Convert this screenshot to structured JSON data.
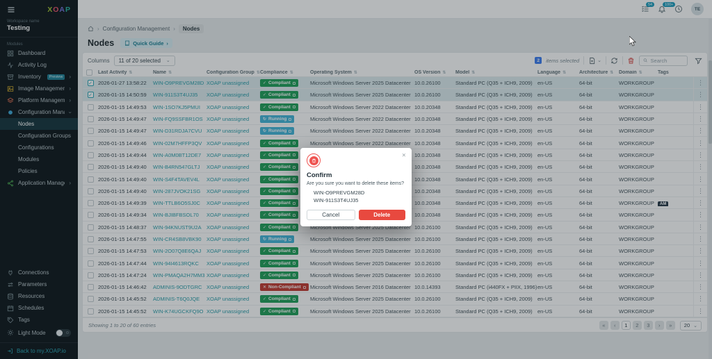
{
  "colors": {
    "accent_teal": "#2aa5b5",
    "link": "#2b9eaa",
    "compliant_green": "#1e9e57",
    "running_blue": "#41b4d8",
    "non_compliant_red": "#c13a32",
    "delete_red": "#e8493f",
    "selected_count_blue": "#3b7df0",
    "notification_badge": "#1d9cbd",
    "sidebar_bg": "#0c161a"
  },
  "sidebar": {
    "logo": "XOAP",
    "workspace_label": "Workspace name",
    "workspace_name": "Testing",
    "modules_label": "Modules",
    "items": [
      {
        "label": "Dashboard",
        "icon": "dashboard-icon"
      },
      {
        "label": "Activity Log",
        "icon": "activity-log-icon"
      },
      {
        "label": "Inventory",
        "icon": "inventory-icon",
        "badge": "Preview"
      },
      {
        "label": "Image Management",
        "icon": "image-management-icon"
      },
      {
        "label": "Platform Management",
        "icon": "platform-management-icon"
      },
      {
        "label": "Configuration Management",
        "icon": "configuration-management-icon"
      },
      {
        "label": "Application Management",
        "icon": "application-management-icon"
      }
    ],
    "config_children": [
      "Nodes",
      "Configuration Groups",
      "Configurations",
      "Modules",
      "Policies"
    ],
    "active_child": "Nodes",
    "secondary": [
      "Connections",
      "Parameters",
      "Resources",
      "Schedules",
      "Tags"
    ],
    "light_mode_label": "Light Mode",
    "back_link": "Back to my.XOAP.io"
  },
  "topbar": {
    "task_badge": "54",
    "notification_badge": "100+",
    "avatar_initials": "TE"
  },
  "breadcrumb": {
    "items": [
      "Configuration Management",
      "Nodes"
    ]
  },
  "page": {
    "title": "Nodes",
    "quick_guide_label": "Quick Guide"
  },
  "toolbar": {
    "columns_label": "Columns",
    "columns_value": "11 of 20 selected",
    "selected_count": "2",
    "selected_label": "items selected",
    "search_placeholder": "Search"
  },
  "table": {
    "columns": [
      {
        "label": "Last Activity",
        "sortable": true
      },
      {
        "label": "Name",
        "sortable": true
      },
      {
        "label": "Configuration Group",
        "sortable": true
      },
      {
        "label": "Compliance",
        "sortable": true
      },
      {
        "label": "Operating System",
        "sortable": true
      },
      {
        "label": "OS Version",
        "sortable": true
      },
      {
        "label": "Model",
        "sortable": true
      },
      {
        "label": "Language",
        "sortable": true
      },
      {
        "label": "Architecture",
        "sortable": true
      },
      {
        "label": "Domain",
        "sortable": true
      },
      {
        "label": "Tags",
        "sortable": false
      }
    ],
    "status_icons": {
      "compliant": "✓",
      "running": "↻",
      "noncompliant": "✕"
    },
    "rows": [
      {
        "last_activity": "2026-01-27 13:58:22",
        "name": "WIN-O9PREVGM28D",
        "group": "XOAP unassigned",
        "status": "compliant",
        "status_label": "Compliant",
        "os": "Microsoft Windows Server 2025 Datacenter",
        "os_version": "10.0.26100",
        "model": "Standard PC (Q35 + ICH9, 2009)",
        "language": "en-US",
        "architecture": "64-bit",
        "domain": "WORKGROUP",
        "tags": [],
        "selected": true
      },
      {
        "last_activity": "2026-01-15 14:50:59",
        "name": "WIN-911S3T4UJ35",
        "group": "XOAP unassigned",
        "status": "compliant",
        "status_label": "Compliant",
        "os": "Microsoft Windows Server 2025 Datacenter",
        "os_version": "10.0.26100",
        "model": "Standard PC (Q35 + ICH9, 2009)",
        "language": "en-US",
        "architecture": "64-bit",
        "domain": "WORKGROUP",
        "tags": [],
        "selected": true
      },
      {
        "last_activity": "2026-01-15 14:49:53",
        "name": "WIN-1SO7KJ5PMUI",
        "group": "XOAP unassigned",
        "status": "compliant",
        "status_label": "Compliant",
        "os": "Microsoft Windows Server 2022 Datacenter",
        "os_version": "10.0.20348",
        "model": "Standard PC (Q35 + ICH9, 2009)",
        "language": "en-US",
        "architecture": "64-bit",
        "domain": "WORKGROUP",
        "tags": [],
        "selected": false
      },
      {
        "last_activity": "2026-01-15 14:49:47",
        "name": "WIN-FQ9SSFBR1OS",
        "group": "XOAP unassigned",
        "status": "running",
        "status_label": "Running",
        "os": "Microsoft Windows Server 2022 Datacenter",
        "os_version": "10.0.20348",
        "model": "Standard PC (Q35 + ICH9, 2009)",
        "language": "en-US",
        "architecture": "64-bit",
        "domain": "WORKGROUP",
        "tags": [],
        "selected": false
      },
      {
        "last_activity": "2026-01-15 14:49:47",
        "name": "WIN-D31RDJA7CVU",
        "group": "XOAP unassigned",
        "status": "running",
        "status_label": "Running",
        "os": "Microsoft Windows Server 2022 Datacenter",
        "os_version": "10.0.20348",
        "model": "Standard PC (Q35 + ICH9, 2009)",
        "language": "en-US",
        "architecture": "64-bit",
        "domain": "WORKGROUP",
        "tags": [],
        "selected": false
      },
      {
        "last_activity": "2026-01-15 14:49:46",
        "name": "WIN-02M7HFFP3QV",
        "group": "XOAP unassigned",
        "status": "compliant",
        "status_label": "Compliant",
        "os": "Microsoft Windows Server 2022 Datacenter",
        "os_version": "10.0.20348",
        "model": "Standard PC (Q35 + ICH9, 2009)",
        "language": "en-US",
        "architecture": "64-bit",
        "domain": "WORKGROUP",
        "tags": [],
        "selected": false
      },
      {
        "last_activity": "2026-01-15 14:49:44",
        "name": "WIN-A0M0BT12DE7",
        "group": "XOAP unassigned",
        "status": "compliant",
        "status_label": "Compliant",
        "os": "Microsoft Windows Server 2022 Datacenter",
        "os_version": "10.0.20348",
        "model": "Standard PC (Q35 + ICH9, 2009)",
        "language": "en-US",
        "architecture": "64-bit",
        "domain": "WORKGROUP",
        "tags": [],
        "selected": false
      },
      {
        "last_activity": "2026-01-15 14:49:40",
        "name": "WIN-B4RN547GLTJ",
        "group": "XOAP unassigned",
        "status": "compliant",
        "status_label": "Compliant",
        "os": "Microsoft Windows Server 2022 Datacenter",
        "os_version": "10.0.20348",
        "model": "Standard PC (Q35 + ICH9, 2009)",
        "language": "en-US",
        "architecture": "64-bit",
        "domain": "WORKGROUP",
        "tags": [],
        "selected": false
      },
      {
        "last_activity": "2026-01-15 14:49:40",
        "name": "WIN-S4F4TAVEV4L",
        "group": "XOAP unassigned",
        "status": "compliant",
        "status_label": "Compliant",
        "os": "Microsoft Windows Server 2022 Datacenter",
        "os_version": "10.0.20348",
        "model": "Standard PC (Q35 + ICH9, 2009)",
        "language": "en-US",
        "architecture": "64-bit",
        "domain": "WORKGROUP",
        "tags": [],
        "selected": false
      },
      {
        "last_activity": "2026-01-15 14:49:40",
        "name": "WIN-287JVOK21SG",
        "group": "XOAP unassigned",
        "status": "compliant",
        "status_label": "Compliant",
        "os": "Microsoft Windows Server 2022 Datacenter",
        "os_version": "10.0.20348",
        "model": "Standard PC (Q35 + ICH9, 2009)",
        "language": "en-US",
        "architecture": "64-bit",
        "domain": "WORKGROUP",
        "tags": [],
        "selected": false
      },
      {
        "last_activity": "2026-01-15 14:49:39",
        "name": "WIN-TTLB6O5SJ0C",
        "group": "XOAP unassigned",
        "status": "compliant",
        "status_label": "Compliant",
        "os": "Microsoft Windows Server 2022 Datacenter",
        "os_version": "10.0.20348",
        "model": "Standard PC (Q35 + ICH9, 2009)",
        "language": "en-US",
        "architecture": "64-bit",
        "domain": "WORKGROUP",
        "tags": [
          "AM"
        ],
        "selected": false
      },
      {
        "last_activity": "2026-01-15 14:49:34",
        "name": "WIN-BJIBFBSOL70",
        "group": "XOAP unassigned",
        "status": "compliant",
        "status_label": "Compliant",
        "os": "Microsoft Windows Server 2022 Datacenter",
        "os_version": "10.0.20348",
        "model": "Standard PC (Q35 + ICH9, 2009)",
        "language": "en-US",
        "architecture": "64-bit",
        "domain": "WORKGROUP",
        "tags": [],
        "selected": false
      },
      {
        "last_activity": "2026-01-15 14:48:37",
        "name": "WIN-94KNUST9U2A",
        "group": "XOAP unassigned",
        "status": "compliant",
        "status_label": "Compliant",
        "os": "Microsoft Windows Server 2025 Datacenter",
        "os_version": "10.0.26100",
        "model": "Standard PC (Q35 + ICH9, 2009)",
        "language": "en-US",
        "architecture": "64-bit",
        "domain": "WORKGROUP",
        "tags": [],
        "selected": false
      },
      {
        "last_activity": "2026-01-15 14:47:55",
        "name": "WIN-CR4SB8VBK90",
        "group": "XOAP unassigned",
        "status": "running",
        "status_label": "Running",
        "os": "Microsoft Windows Server 2025 Datacenter",
        "os_version": "10.0.26100",
        "model": "Standard PC (Q35 + ICH9, 2009)",
        "language": "en-US",
        "architecture": "64-bit",
        "domain": "WORKGROUP",
        "tags": [],
        "selected": false
      },
      {
        "last_activity": "2026-01-15 14:47:53",
        "name": "WIN-2O07Q8E6QAJ",
        "group": "XOAP unassigned",
        "status": "compliant",
        "status_label": "Compliant",
        "os": "Microsoft Windows Server 2025 Datacenter",
        "os_version": "10.0.26100",
        "model": "Standard PC (Q35 + ICH9, 2009)",
        "language": "en-US",
        "architecture": "64-bit",
        "domain": "WORKGROUP",
        "tags": [],
        "selected": false
      },
      {
        "last_activity": "2026-01-15 14:47:44",
        "name": "WIN-94I4613RQKC",
        "group": "XOAP unassigned",
        "status": "compliant",
        "status_label": "Compliant",
        "os": "Microsoft Windows Server 2025 Datacenter",
        "os_version": "10.0.26100",
        "model": "Standard PC (Q35 + ICH9, 2009)",
        "language": "en-US",
        "architecture": "64-bit",
        "domain": "WORKGROUP",
        "tags": [],
        "selected": false
      },
      {
        "last_activity": "2026-01-15 14:47:24",
        "name": "WIN-PMAQA2H7MM3",
        "group": "XOAP unassigned",
        "status": "compliant",
        "status_label": "Compliant",
        "os": "Microsoft Windows Server 2025 Datacenter",
        "os_version": "10.0.26100",
        "model": "Standard PC (Q35 + ICH9, 2009)",
        "language": "en-US",
        "architecture": "64-bit",
        "domain": "WORKGROUP",
        "tags": [],
        "selected": false
      },
      {
        "last_activity": "2026-01-15 14:46:42",
        "name": "ADMINIS-9ODTGRC",
        "group": "XOAP unassigned",
        "status": "noncompliant",
        "status_label": "Non-Compliant",
        "os": "Microsoft Windows Server 2016 Datacenter",
        "os_version": "10.0.14393",
        "model": "Standard PC (i440FX + PIIX, 1996)",
        "language": "en-US",
        "architecture": "64-bit",
        "domain": "WORKGROUP",
        "tags": [],
        "selected": false
      },
      {
        "last_activity": "2026-01-15 14:45:52",
        "name": "ADMINIS-T6Q0JQE",
        "group": "XOAP unassigned",
        "status": "compliant",
        "status_label": "Compliant",
        "os": "Microsoft Windows Server 2025 Datacenter",
        "os_version": "10.0.26100",
        "model": "Standard PC (Q35 + ICH9, 2009)",
        "language": "en-US",
        "architecture": "64-bit",
        "domain": "WORKGROUP",
        "tags": [],
        "selected": false
      },
      {
        "last_activity": "2026-01-15 14:45:52",
        "name": "WIN-K74UGCKFQ9O",
        "group": "XOAP unassigned",
        "status": "compliant",
        "status_label": "Compliant",
        "os": "Microsoft Windows Server 2025 Datacenter",
        "os_version": "10.0.26100",
        "model": "Standard PC (Q35 + ICH9, 2009)",
        "language": "en-US",
        "architecture": "64-bit",
        "domain": "WORKGROUP",
        "tags": [],
        "selected": false
      }
    ]
  },
  "footer": {
    "summary": "Showing 1 to 20 of 60 entries",
    "pages": [
      "1",
      "2",
      "3"
    ],
    "active_page": "1",
    "page_size": "20",
    "nav": {
      "first": "«",
      "prev": "‹",
      "next": "›",
      "last": "»"
    }
  },
  "modal": {
    "title": "Confirm",
    "message": "Are you sure you want to delete these items?",
    "items": [
      "WIN-O9PREVGM28D",
      "WIN-911S3T4UJ35"
    ],
    "cancel_label": "Cancel",
    "delete_label": "Delete"
  }
}
